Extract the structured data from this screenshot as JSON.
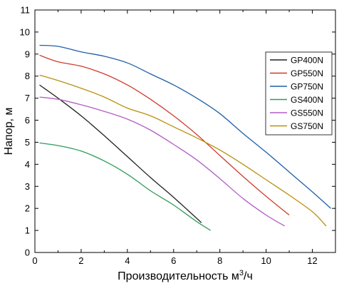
{
  "chart_data": {
    "type": "line",
    "xlabel": "Производительность м",
    "xlabel_sup": "3",
    "xlabel_unit": "/ч",
    "ylabel": "Напор, м",
    "xlim": [
      0,
      13
    ],
    "ylim": [
      0,
      11
    ],
    "xticks": [
      "0",
      "2",
      "4",
      "6",
      "8",
      "10",
      "12"
    ],
    "yticks": [
      "0",
      "1",
      "2",
      "3",
      "4",
      "5",
      "6",
      "7",
      "8",
      "9",
      "10",
      "11"
    ],
    "grid": false,
    "legend_position": "right",
    "series": [
      {
        "name": "GP400N",
        "color": "#222222",
        "x": [
          0.2,
          1,
          2,
          3,
          4,
          5,
          6,
          7,
          7.2
        ],
        "y": [
          7.6,
          7.0,
          6.2,
          5.3,
          4.35,
          3.4,
          2.5,
          1.55,
          1.35
        ]
      },
      {
        "name": "GP550N",
        "color": "#d03b2c",
        "x": [
          0.2,
          1,
          2,
          3,
          4,
          5,
          6,
          7,
          8,
          9,
          10,
          11
        ],
        "y": [
          8.95,
          8.65,
          8.45,
          8.1,
          7.6,
          6.95,
          6.2,
          5.35,
          4.4,
          3.45,
          2.55,
          1.7
        ]
      },
      {
        "name": "GP750N",
        "color": "#1f5fa8",
        "x": [
          0.2,
          1,
          2,
          3,
          4,
          5,
          6,
          7,
          8,
          9,
          10,
          11,
          12,
          12.8
        ],
        "y": [
          9.4,
          9.35,
          9.1,
          8.9,
          8.6,
          8.1,
          7.6,
          7.0,
          6.3,
          5.4,
          4.55,
          3.65,
          2.75,
          2.0
        ]
      },
      {
        "name": "GS400N",
        "color": "#2e9c5a",
        "x": [
          0.2,
          1,
          2,
          3,
          4,
          5,
          6,
          7,
          7.6
        ],
        "y": [
          4.97,
          4.85,
          4.6,
          4.15,
          3.55,
          2.8,
          2.15,
          1.4,
          1.0
        ]
      },
      {
        "name": "GS550N",
        "color": "#b15fc4",
        "x": [
          0.2,
          1,
          2,
          3,
          4,
          5,
          6,
          7,
          8,
          9,
          10,
          10.8
        ],
        "y": [
          7.05,
          6.95,
          6.7,
          6.4,
          6.05,
          5.55,
          4.9,
          4.2,
          3.35,
          2.45,
          1.7,
          1.2
        ]
      },
      {
        "name": "GS750N",
        "color": "#b8900e",
        "x": [
          0.2,
          1,
          2,
          3,
          4,
          5,
          6,
          7,
          8,
          9,
          10,
          11,
          12,
          12.6
        ],
        "y": [
          8.05,
          7.8,
          7.45,
          7.05,
          6.55,
          6.2,
          5.7,
          5.2,
          4.65,
          4.0,
          3.3,
          2.6,
          1.85,
          1.2
        ]
      }
    ]
  }
}
